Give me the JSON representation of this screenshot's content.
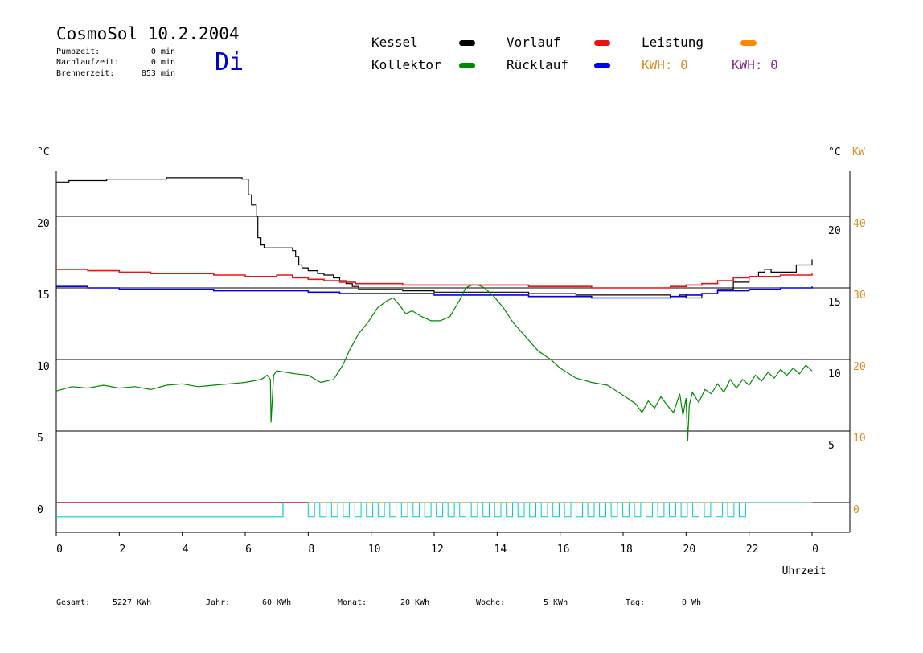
{
  "header": {
    "title": "CosmoSol 10.2.2004",
    "day": "Di",
    "stats": [
      {
        "label": "Pumpzeit:",
        "value": "0 min"
      },
      {
        "label": "Nachlaufzeit:",
        "value": "0 min"
      },
      {
        "label": "Brennerzeit:",
        "value": "853 min"
      }
    ]
  },
  "legend": {
    "kessel": {
      "label": "Kessel",
      "color": "#000000"
    },
    "vorlauf": {
      "label": "Vorlauf",
      "color": "#ee1111"
    },
    "leistung": {
      "label": "Leistung",
      "color": "#ff8800"
    },
    "kollektor": {
      "label": "Kollektor",
      "color": "#008800"
    },
    "ruecklauf": {
      "label": "Rücklauf",
      "color": "#0000ee"
    },
    "kwh1": "KWH: 0",
    "kwh1_color": "#e08a1e",
    "kwh2": "KWH: 0",
    "kwh2_color": "#8a2a8a"
  },
  "footer": [
    {
      "label": "Gesamt:",
      "value": "5227 KWh"
    },
    {
      "label": "Jahr:",
      "value": "60 KWh"
    },
    {
      "label": "Monat:",
      "value": "20 KWh"
    },
    {
      "label": "Woche:",
      "value": "5 KWh"
    },
    {
      "label": "Tag:",
      "value": "0 Wh"
    }
  ],
  "chart_data": {
    "type": "line",
    "grid": "horizontal",
    "xlabel": "Uhrzeit",
    "x_ticks": [
      "0",
      "2",
      "4",
      "6",
      "8",
      "10",
      "12",
      "14",
      "16",
      "18",
      "20",
      "22",
      "0"
    ],
    "xlim": [
      0,
      24
    ],
    "ylim": [
      -2,
      23
    ],
    "y_left_label": "°C",
    "y_left_ticks": [
      0,
      5,
      10,
      15,
      20
    ],
    "y_right_label": "°C",
    "y_right_ticks": [
      5,
      10,
      15,
      20
    ],
    "y_kw_label": "KW",
    "y_kw_ticks": [
      0,
      10,
      20,
      30,
      40
    ],
    "series": [
      {
        "name": "Kessel",
        "color": "#000000",
        "step": true,
        "x": [
          0,
          0.4,
          1,
          1.6,
          2,
          2.6,
          3,
          3.5,
          4,
          4.5,
          5,
          5.5,
          5.8,
          5.9,
          6.1,
          6.2,
          6.3,
          6.35,
          6.4,
          6.5,
          6.6,
          7,
          7.3,
          7.5,
          7.6,
          7.7,
          7.8,
          8,
          8.3,
          8.5,
          8.8,
          9.0,
          9.2,
          9.4,
          9.6,
          10,
          11,
          12,
          13,
          14,
          15,
          16,
          16.5,
          17,
          18,
          19,
          19.5,
          19.8,
          20,
          20.5,
          21,
          21.5,
          22,
          22.3,
          22.5,
          22.7,
          23,
          23.5,
          24
        ],
        "y": [
          22.4,
          22.5,
          22.5,
          22.6,
          22.6,
          22.6,
          22.6,
          22.7,
          22.7,
          22.7,
          22.7,
          22.7,
          22.7,
          22.6,
          21.5,
          20.8,
          20.8,
          20.0,
          18.5,
          18.0,
          17.8,
          17.8,
          17.8,
          17.6,
          17.2,
          16.6,
          16.4,
          16.2,
          16.0,
          15.9,
          15.7,
          15.5,
          15.3,
          15.1,
          14.9,
          14.9,
          14.8,
          14.7,
          14.7,
          14.7,
          14.6,
          14.6,
          14.5,
          14.5,
          14.5,
          14.5,
          14.4,
          14.5,
          14.3,
          14.6,
          14.9,
          15.4,
          15.8,
          16.1,
          16.3,
          16.1,
          16.1,
          16.6,
          17.0
        ]
      },
      {
        "name": "Vorlauf",
        "color": "#ee1111",
        "step": true,
        "x": [
          0,
          1,
          2,
          3,
          4,
          5,
          6,
          7,
          7.5,
          8,
          8.5,
          9,
          9.5,
          10,
          11,
          12,
          13,
          14,
          15,
          16,
          17,
          17.5,
          18,
          19,
          19.5,
          20,
          20.5,
          21,
          21.5,
          22,
          23,
          24
        ],
        "y": [
          16.3,
          16.2,
          16.1,
          16.0,
          16.0,
          15.9,
          15.8,
          15.9,
          15.7,
          15.6,
          15.5,
          15.4,
          15.3,
          15.3,
          15.2,
          15.2,
          15.2,
          15.2,
          15.1,
          15.1,
          15.0,
          15.0,
          15.0,
          15.0,
          15.1,
          15.2,
          15.3,
          15.5,
          15.7,
          15.8,
          15.9,
          16.0
        ]
      },
      {
        "name": "Rücklauf",
        "color": "#0000ee",
        "step": true,
        "x": [
          0,
          1,
          2,
          3,
          4,
          5,
          6,
          7,
          8,
          9,
          10,
          11,
          12,
          13,
          14,
          15,
          16,
          16.5,
          17,
          18,
          19,
          19.5,
          20,
          20.5,
          21,
          22,
          23,
          24
        ],
        "y": [
          15.1,
          15.0,
          14.9,
          14.9,
          14.9,
          14.8,
          14.8,
          14.8,
          14.7,
          14.6,
          14.6,
          14.6,
          14.5,
          14.5,
          14.5,
          14.4,
          14.4,
          14.4,
          14.3,
          14.3,
          14.3,
          14.4,
          14.5,
          14.6,
          14.8,
          14.9,
          15.0,
          15.1
        ]
      },
      {
        "name": "Kollektor",
        "color": "#008800",
        "step": false,
        "x": [
          0,
          0.5,
          1,
          1.5,
          2,
          2.5,
          3,
          3.5,
          4,
          4.5,
          5,
          5.5,
          6,
          6.5,
          6.7,
          6.8,
          6.82,
          6.9,
          7,
          7.3,
          7.6,
          8,
          8.4,
          8.8,
          9.1,
          9.3,
          9.6,
          9.9,
          10.2,
          10.5,
          10.7,
          10.9,
          11.1,
          11.3,
          11.6,
          11.9,
          12.2,
          12.5,
          12.8,
          13.0,
          13.2,
          13.4,
          13.6,
          13.9,
          14.2,
          14.5,
          14.9,
          15.3,
          15.7,
          16.0,
          16.5,
          17,
          17.5,
          18,
          18.2,
          18.4,
          18.6,
          18.8,
          19.0,
          19.2,
          19.4,
          19.6,
          19.8,
          19.9,
          20.0,
          20.05,
          20.1,
          20.2,
          20.4,
          20.6,
          20.8,
          21.0,
          21.2,
          21.4,
          21.6,
          21.8,
          22.0,
          22.2,
          22.4,
          22.6,
          22.8,
          23.0,
          23.2,
          23.4,
          23.6,
          23.8,
          24
        ],
        "y": [
          7.8,
          8.1,
          8.0,
          8.2,
          8.0,
          8.1,
          7.9,
          8.2,
          8.3,
          8.1,
          8.2,
          8.3,
          8.4,
          8.6,
          8.9,
          8.6,
          5.6,
          8.9,
          9.2,
          9.1,
          9.0,
          8.9,
          8.4,
          8.6,
          9.6,
          10.6,
          11.8,
          12.6,
          13.6,
          14.1,
          14.3,
          13.8,
          13.2,
          13.4,
          13.0,
          12.7,
          12.7,
          13.0,
          14.1,
          15.0,
          15.2,
          15.2,
          15.0,
          14.4,
          13.6,
          12.6,
          11.6,
          10.6,
          10.0,
          9.4,
          8.7,
          8.4,
          8.2,
          7.5,
          7.2,
          6.9,
          6.3,
          7.1,
          6.6,
          7.4,
          6.8,
          6.3,
          7.6,
          6.1,
          7.3,
          4.3,
          6.8,
          7.7,
          7.0,
          7.9,
          7.6,
          8.3,
          7.7,
          8.6,
          8.0,
          8.6,
          8.2,
          8.9,
          8.5,
          9.1,
          8.7,
          9.3,
          8.9,
          9.4,
          9.0,
          9.6,
          9.2
        ]
      },
      {
        "name": "Pumpe",
        "color": "#00cccc",
        "step": true,
        "x": [
          0,
          7.2,
          7.2,
          7.2
        ],
        "y": [
          -1.0,
          -1.0,
          -0.0,
          -1.0
        ]
      },
      {
        "name": "Leistung",
        "color": "#ff8800",
        "step": true,
        "x": [
          0,
          24
        ],
        "y": [
          0,
          0
        ]
      }
    ]
  }
}
